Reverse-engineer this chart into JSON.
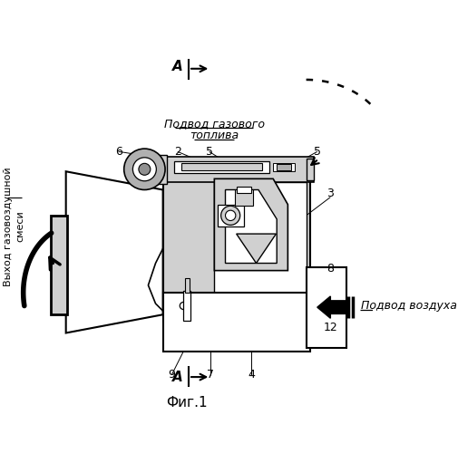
{
  "title": "Фиг.1",
  "bg_color": "#ffffff",
  "text_color": "#000000",
  "label_gas_line1": "Подвод газового",
  "label_gas_line2": "топлива",
  "label_air": "Подвод воздуха",
  "label_exit_line1": "Выход газовоздушной",
  "label_exit_line2": "смеси",
  "label_A": "А",
  "lgray": "#d0d0d0",
  "dgray": "#909090",
  "mgray": "#b0b0b0"
}
